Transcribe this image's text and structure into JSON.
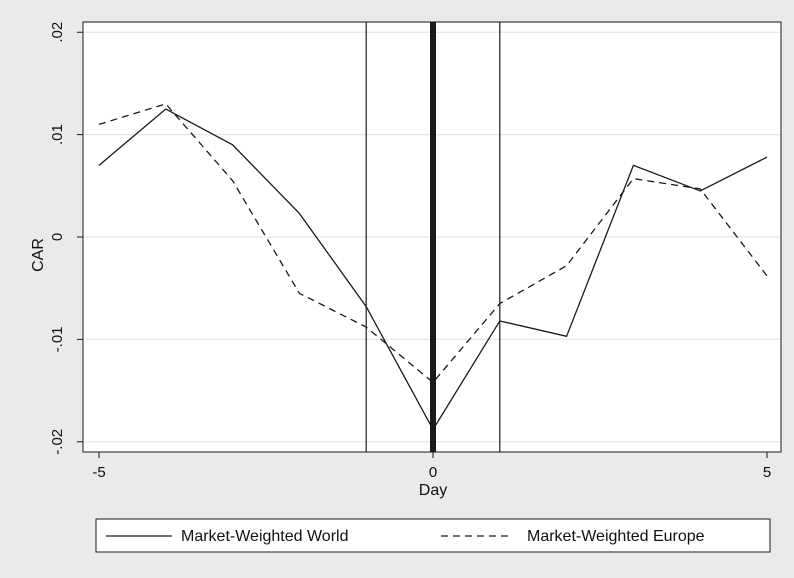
{
  "chart_data": {
    "type": "line",
    "title": "",
    "xlabel": "Day",
    "ylabel": "CAR",
    "xlim": [
      -5,
      5
    ],
    "ylim": [
      -0.021,
      0.021
    ],
    "x_ticks": [
      -5,
      0,
      5
    ],
    "x_tick_labels": [
      "-5",
      "0",
      "5"
    ],
    "y_ticks": [
      -0.02,
      -0.01,
      0,
      0.01,
      0.02
    ],
    "y_tick_labels": [
      "-.02",
      "-.01",
      "0",
      ".01",
      ".02"
    ],
    "grid": "horizontal",
    "legend_position": "bottom",
    "reference_lines": [
      {
        "x": -1,
        "style": "thin"
      },
      {
        "x": 0,
        "style": "thick"
      },
      {
        "x": 1,
        "style": "thin"
      }
    ],
    "x": [
      -5,
      -4,
      -3,
      -2,
      -1,
      0,
      1,
      2,
      3,
      4,
      5
    ],
    "series": [
      {
        "name": "Market-Weighted World",
        "line_style": "solid",
        "color": "#1a1a1a",
        "values": [
          0.007,
          0.0125,
          0.009,
          0.0023,
          -0.0068,
          -0.0188,
          -0.0082,
          -0.0097,
          0.007,
          0.0045,
          0.0078
        ]
      },
      {
        "name": "Market-Weighted Europe",
        "line_style": "dashed",
        "color": "#1a1a1a",
        "values": [
          0.011,
          0.013,
          0.0055,
          -0.0055,
          -0.0088,
          -0.0142,
          -0.0065,
          -0.0028,
          0.0057,
          0.0047,
          -0.0038
        ]
      }
    ]
  },
  "colors": {
    "background": "#eaeaea",
    "plot_area": "#ffffff",
    "gridline": "#e6e6e6",
    "ink": "#1a1a1a"
  }
}
